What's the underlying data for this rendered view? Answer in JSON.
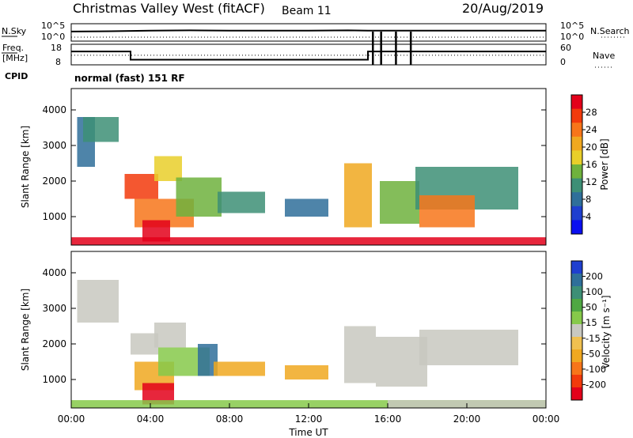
{
  "header": {
    "station": "Christmas Valley West (fitACF)",
    "beam": "Beam 11",
    "date": "20/Aug/2019",
    "mode": "normal (fast) 151 RF"
  },
  "side_labels": {
    "nsky": "N.Sky",
    "freq_1": "Freq.",
    "freq_2": "[MHz]",
    "cpid": "CPID",
    "nsearch": "N.Search",
    "nave": "Nave"
  },
  "chart_data": [
    {
      "type": "line",
      "name": "noise",
      "yticks_left": [
        "10^5",
        "10^0"
      ],
      "yticks_right": [
        "10^5",
        "10^0"
      ],
      "description_series": [
        {
          "name": "N.Sky",
          "x": [
            "00:00",
            "02:00",
            "04:00",
            "06:00",
            "08:00",
            "10:00",
            "12:00",
            "14:00",
            "15:00",
            "17:00",
            "19:00",
            "21:00",
            "24:00"
          ],
          "y": [
            0.55,
            0.57,
            0.6,
            0.62,
            0.6,
            0.6,
            0.6,
            0.62,
            0.6,
            0.6,
            0.6,
            0.6,
            0.6
          ]
        }
      ]
    },
    {
      "type": "line",
      "name": "frequency",
      "yticks_left": [
        "18",
        "8"
      ],
      "yticks_right": [
        "60",
        "0"
      ],
      "series": [
        {
          "name": "Freq.",
          "x": [
            "00:00",
            "03:00",
            "03:00",
            "15:00",
            "15:00",
            "24:00"
          ],
          "y": [
            14.5,
            14.5,
            10.5,
            10.5,
            14.5,
            14.5
          ]
        },
        {
          "name": "Nave",
          "x": [
            "00:00",
            "24:00"
          ],
          "y": [
            28,
            28
          ]
        }
      ],
      "spikes_x": [
        "15:15",
        "15:40",
        "16:25",
        "17:10"
      ]
    },
    {
      "type": "heatmap",
      "name": "power",
      "ylabel": "Slant Range [km]",
      "ylim": [
        200,
        4600
      ],
      "yticks": [
        1000,
        2000,
        3000,
        4000
      ],
      "colorbar_label": "Power [dB]",
      "colorbar_ticks": [
        "28",
        "24",
        "20",
        "16",
        "12",
        "8",
        "4"
      ],
      "colorbar_colors": [
        "#e3001a",
        "#f23a0c",
        "#f7751a",
        "#f0a820",
        "#e9cf2a",
        "#6fb23d",
        "#3d8f76",
        "#2f6f9a",
        "#1f3fcf",
        "#0a0ff0"
      ],
      "cells": [
        {
          "t0": 0.3,
          "t1": 1.2,
          "r0": 2400,
          "r1": 3800,
          "color": "#2f6f9a"
        },
        {
          "t0": 0.6,
          "t1": 2.4,
          "r0": 3100,
          "r1": 3800,
          "color": "#3d8f76"
        },
        {
          "t0": 2.7,
          "t1": 4.4,
          "r0": 1500,
          "r1": 2200,
          "color": "#f23a0c"
        },
        {
          "t0": 3.2,
          "t1": 6.2,
          "r0": 700,
          "r1": 1500,
          "color": "#f7751a"
        },
        {
          "t0": 4.2,
          "t1": 5.6,
          "r0": 2000,
          "r1": 2700,
          "color": "#e9cf2a"
        },
        {
          "t0": 5.3,
          "t1": 7.6,
          "r0": 1000,
          "r1": 2100,
          "color": "#6fb23d"
        },
        {
          "t0": 7.4,
          "t1": 9.8,
          "r0": 1100,
          "r1": 1700,
          "color": "#3d8f76"
        },
        {
          "t0": 3.6,
          "t1": 5.0,
          "r0": 300,
          "r1": 900,
          "color": "#e3001a"
        },
        {
          "t0": 10.8,
          "t1": 13.0,
          "r0": 1000,
          "r1": 1500,
          "color": "#2f6f9a"
        },
        {
          "t0": 13.8,
          "t1": 15.2,
          "r0": 700,
          "r1": 2500,
          "color": "#f0a820"
        },
        {
          "t0": 15.6,
          "t1": 17.6,
          "r0": 800,
          "r1": 2000,
          "color": "#6fb23d"
        },
        {
          "t0": 17.4,
          "t1": 22.6,
          "r0": 1200,
          "r1": 2400,
          "color": "#3d8f76"
        },
        {
          "t0": 17.6,
          "t1": 20.4,
          "r0": 700,
          "r1": 1600,
          "color": "#f7751a"
        },
        {
          "t0": 0.0,
          "t1": 24.0,
          "r0": 200,
          "r1": 420,
          "color": "#e3001a"
        }
      ]
    },
    {
      "type": "heatmap",
      "name": "velocity",
      "xlabel": "Time UT",
      "ylabel": "Slant Range [km]",
      "ylim": [
        200,
        4600
      ],
      "yticks": [
        1000,
        2000,
        3000,
        4000
      ],
      "xticks": [
        "00:00",
        "04:00",
        "08:00",
        "12:00",
        "16:00",
        "20:00",
        "00:00"
      ],
      "colorbar_label": "Velocity [m s⁻¹]",
      "colorbar_ticks": [
        "200",
        "100",
        "50",
        "15",
        "-15",
        "-50",
        "-100",
        "-200"
      ],
      "colorbar_colors": [
        "#1f3fcf",
        "#2f6f9a",
        "#3d8f76",
        "#4fa843",
        "#86c94a",
        "#c8c8c0",
        "#f0c050",
        "#f0a820",
        "#f7751a",
        "#f23a0c",
        "#e3001a"
      ],
      "cells": [
        {
          "t0": 0.3,
          "t1": 2.4,
          "r0": 2600,
          "r1": 3800,
          "color": "#c8c8c0"
        },
        {
          "t0": 3.0,
          "t1": 4.4,
          "r0": 1700,
          "r1": 2300,
          "color": "#c8c8c0"
        },
        {
          "t0": 3.2,
          "t1": 5.2,
          "r0": 700,
          "r1": 1500,
          "color": "#f0a820"
        },
        {
          "t0": 4.4,
          "t1": 7.0,
          "r0": 1100,
          "r1": 1900,
          "color": "#86c94a"
        },
        {
          "t0": 6.4,
          "t1": 7.4,
          "r0": 1100,
          "r1": 2000,
          "color": "#2f6f9a"
        },
        {
          "t0": 7.2,
          "t1": 9.8,
          "r0": 1100,
          "r1": 1500,
          "color": "#f0a820"
        },
        {
          "t0": 4.2,
          "t1": 5.8,
          "r0": 1900,
          "r1": 2600,
          "color": "#c8c8c0"
        },
        {
          "t0": 3.6,
          "t1": 5.2,
          "r0": 300,
          "r1": 900,
          "color": "#e3001a"
        },
        {
          "t0": 10.8,
          "t1": 13.0,
          "r0": 1000,
          "r1": 1400,
          "color": "#f0a820"
        },
        {
          "t0": 13.8,
          "t1": 15.4,
          "r0": 900,
          "r1": 2500,
          "color": "#c8c8c0"
        },
        {
          "t0": 15.4,
          "t1": 18.0,
          "r0": 800,
          "r1": 2200,
          "color": "#c8c8c0"
        },
        {
          "t0": 17.6,
          "t1": 22.6,
          "r0": 1400,
          "r1": 2400,
          "color": "#c8c8c0"
        },
        {
          "t0": 0.0,
          "t1": 24.0,
          "r0": 200,
          "r1": 420,
          "color": "#86c94a"
        },
        {
          "t0": 16.0,
          "t1": 24.0,
          "r0": 200,
          "r1": 420,
          "color": "#c8c8c0"
        }
      ]
    }
  ]
}
